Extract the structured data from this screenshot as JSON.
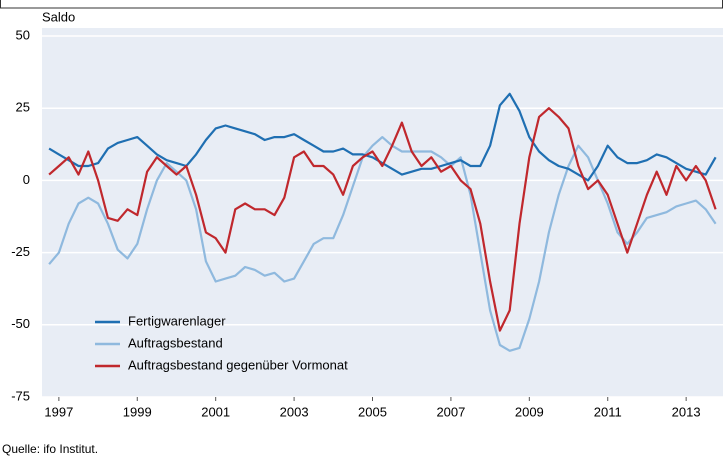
{
  "chart_data": {
    "type": "line",
    "y_label": "Saldo",
    "source": "Quelle: ifo Institut.",
    "x": [
      1996.75,
      1997,
      1997.25,
      1997.5,
      1997.75,
      1998,
      1998.25,
      1998.5,
      1998.75,
      1999,
      1999.25,
      1999.5,
      1999.75,
      2000,
      2000.25,
      2000.5,
      2000.75,
      2001,
      2001.25,
      2001.5,
      2001.75,
      2002,
      2002.25,
      2002.5,
      2002.75,
      2003,
      2003.25,
      2003.5,
      2003.75,
      2004,
      2004.25,
      2004.5,
      2004.75,
      2005,
      2005.25,
      2005.5,
      2005.75,
      2006,
      2006.25,
      2006.5,
      2006.75,
      2007,
      2007.25,
      2007.5,
      2007.75,
      2008,
      2008.25,
      2008.5,
      2008.75,
      2009,
      2009.25,
      2009.5,
      2009.75,
      2010,
      2010.25,
      2010.5,
      2010.75,
      2011,
      2011.25,
      2011.5,
      2011.75,
      2012,
      2012.25,
      2012.5,
      2012.75,
      2013,
      2013.25,
      2013.5,
      2013.75
    ],
    "series": [
      {
        "name": "Fertigwarenlager",
        "color": "#1f6fb2",
        "values": [
          11,
          9,
          7,
          5,
          5,
          6,
          11,
          13,
          14,
          15,
          12,
          9,
          7,
          6,
          5,
          9,
          14,
          18,
          19,
          18,
          17,
          16,
          14,
          15,
          15,
          16,
          14,
          12,
          10,
          10,
          11,
          9,
          9,
          8,
          6,
          4,
          2,
          3,
          4,
          4,
          5,
          6,
          7,
          5,
          5,
          12,
          26,
          30,
          24,
          15,
          10,
          7,
          5,
          4,
          2,
          0,
          5,
          12,
          8,
          6,
          6,
          7,
          9,
          8,
          6,
          4,
          3,
          2,
          8
        ]
      },
      {
        "name": "Auftragsbestand",
        "color": "#8fb9de",
        "values": [
          -29,
          -25,
          -15,
          -8,
          -6,
          -8,
          -15,
          -24,
          -27,
          -22,
          -10,
          0,
          6,
          3,
          0,
          -10,
          -28,
          -35,
          -34,
          -33,
          -30,
          -31,
          -33,
          -32,
          -35,
          -34,
          -28,
          -22,
          -20,
          -20,
          -12,
          -2,
          8,
          12,
          15,
          12,
          10,
          10,
          10,
          10,
          8,
          5,
          8,
          -5,
          -25,
          -45,
          -57,
          -59,
          -58,
          -48,
          -35,
          -18,
          -5,
          5,
          12,
          8,
          0,
          -8,
          -18,
          -22,
          -18,
          -13,
          -12,
          -11,
          -9,
          -8,
          -7,
          -10,
          -15
        ]
      },
      {
        "name": "Auftragsbestand gegenüber Vormonat",
        "color": "#c0282d",
        "values": [
          2,
          5,
          8,
          2,
          10,
          0,
          -13,
          -14,
          -10,
          -12,
          3,
          8,
          5,
          2,
          5,
          -5,
          -18,
          -20,
          -25,
          -10,
          -8,
          -10,
          -10,
          -12,
          -6,
          8,
          10,
          5,
          5,
          2,
          -5,
          5,
          8,
          10,
          5,
          12,
          20,
          10,
          5,
          8,
          3,
          5,
          0,
          -3,
          -15,
          -35,
          -52,
          -45,
          -15,
          8,
          22,
          25,
          22,
          18,
          5,
          -3,
          0,
          -5,
          -15,
          -25,
          -15,
          -5,
          3,
          -5,
          5,
          0,
          5,
          0,
          -10
        ]
      }
    ],
    "xlim": [
      1996.57,
      2013.94
    ],
    "xticks": [
      1997,
      1999,
      2001,
      2003,
      2005,
      2007,
      2009,
      2011,
      2013
    ],
    "ylim": [
      -75,
      50
    ],
    "yticks": [
      -75,
      -50,
      -25,
      0,
      25,
      50
    ],
    "grid": true
  }
}
